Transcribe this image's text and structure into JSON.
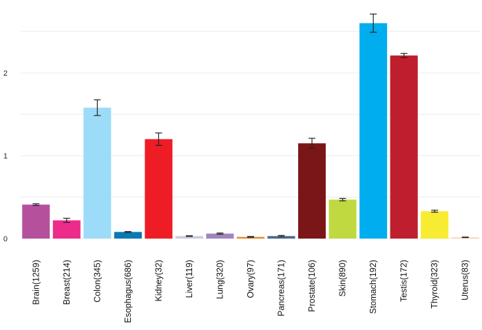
{
  "chart_data": {
    "type": "bar",
    "title": "",
    "xlabel": "",
    "ylabel": "",
    "ylim": [
      0,
      2.5
    ],
    "yticks": [
      0,
      1,
      2
    ],
    "grid": true,
    "legend": "none",
    "categories": [
      "Brain(1259)",
      "Breast(214)",
      "Colon(345)",
      "Esophagus(686)",
      "Kidney(32)",
      "Liver(119)",
      "Lung(320)",
      "Ovary(97)",
      "Pancreas(171)",
      "Prostate(106)",
      "Skin(890)",
      "Stomach(192)",
      "Testis(172)",
      "Thyroid(323)",
      "Uterus(83)"
    ],
    "values": [
      0.41,
      0.22,
      1.58,
      0.08,
      1.2,
      0.03,
      0.06,
      0.02,
      0.03,
      1.15,
      0.47,
      2.6,
      2.21,
      0.33,
      0.015
    ],
    "errors": [
      0.01,
      0.025,
      0.095,
      0.005,
      0.075,
      0.004,
      0.007,
      0.005,
      0.008,
      0.06,
      0.015,
      0.11,
      0.025,
      0.012,
      0.003
    ],
    "colors": [
      "#B5509D",
      "#EC2B8B",
      "#9DDCF9",
      "#0A79B3",
      "#EE1C25",
      "#CCCCDD",
      "#A185C0",
      "#E58A2B",
      "#4A6B8F",
      "#7B1618",
      "#C0D940",
      "#00ADEE",
      "#BE1E2D",
      "#F7EC31",
      "#FCD6B0"
    ]
  }
}
